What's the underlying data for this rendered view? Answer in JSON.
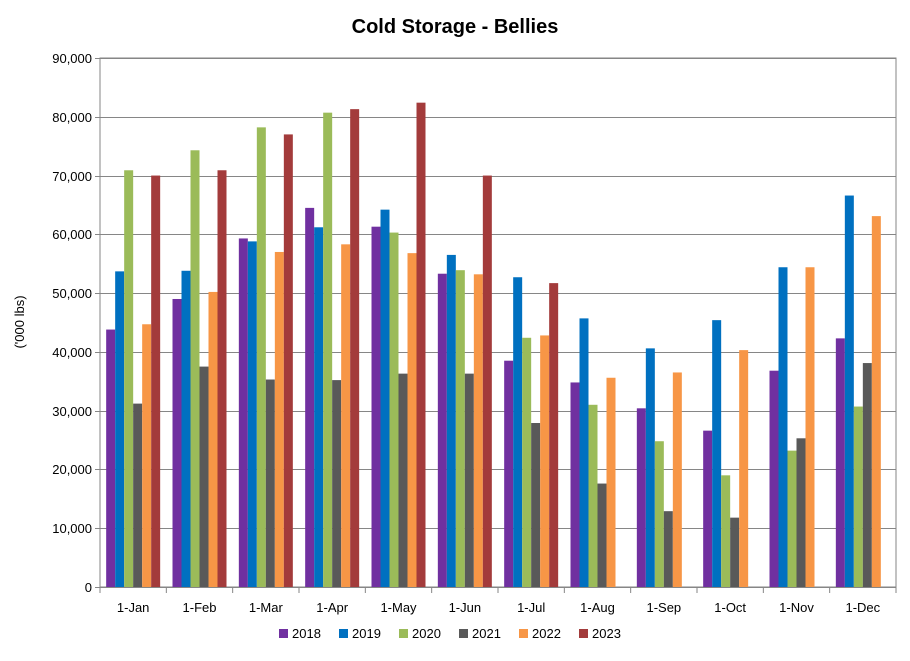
{
  "chart_data": {
    "type": "bar",
    "title": "Cold Storage - Bellies",
    "ylabel": "('000 lbs)",
    "xlabel": "",
    "ylim": [
      0,
      90000
    ],
    "yticks": [
      0,
      10000,
      20000,
      30000,
      40000,
      50000,
      60000,
      70000,
      80000,
      90000
    ],
    "ytick_labels": [
      "0",
      "10,000",
      "20,000",
      "30,000",
      "40,000",
      "50,000",
      "60,000",
      "70,000",
      "80,000",
      "90,000"
    ],
    "grid": true,
    "legend": "bottom",
    "categories": [
      "1-Jan",
      "1-Feb",
      "1-Mar",
      "1-Apr",
      "1-May",
      "1-Jun",
      "1-Jul",
      "1-Aug",
      "1-Sep",
      "1-Oct",
      "1-Nov",
      "1-Dec"
    ],
    "series": [
      {
        "name": "2018",
        "color": "#7030A0",
        "values": [
          43800,
          49000,
          59300,
          64500,
          61300,
          53300,
          38500,
          34800,
          30400,
          26600,
          36800,
          42300
        ]
      },
      {
        "name": "2019",
        "color": "#0070C0",
        "values": [
          53700,
          53800,
          58800,
          61200,
          64200,
          56500,
          52700,
          45700,
          40600,
          45400,
          54400,
          66600
        ]
      },
      {
        "name": "2020",
        "color": "#9BBB59",
        "values": [
          70900,
          74300,
          78200,
          80700,
          60300,
          53900,
          42400,
          31000,
          24800,
          19000,
          23200,
          30700
        ]
      },
      {
        "name": "2021",
        "color": "#595959",
        "values": [
          31200,
          37500,
          35300,
          35200,
          36300,
          36300,
          27900,
          17600,
          12900,
          11800,
          25300,
          38100
        ]
      },
      {
        "name": "2022",
        "color": "#F79646",
        "values": [
          44700,
          50200,
          57000,
          58300,
          56800,
          53200,
          42800,
          35600,
          36500,
          40300,
          54400,
          63100
        ]
      },
      {
        "name": "2023",
        "color": "#A33B3B",
        "values": [
          70000,
          70900,
          77000,
          81300,
          82400,
          70000,
          51700,
          null,
          null,
          null,
          null,
          null
        ]
      }
    ]
  }
}
